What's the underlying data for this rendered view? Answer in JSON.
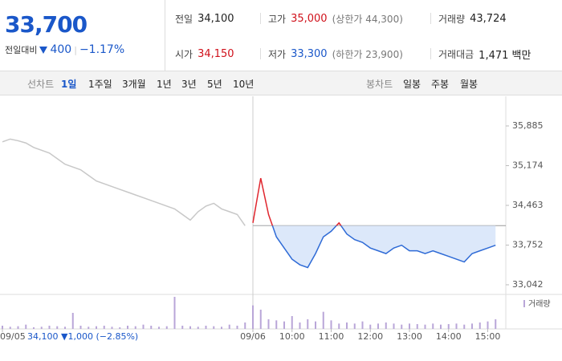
{
  "header": {
    "price": "33,700",
    "change_label": "전일대비",
    "change": "400",
    "change_pct": "−1.17%"
  },
  "stats": [
    {
      "label": "전일",
      "value": "34,100"
    },
    {
      "label": "고가",
      "value": "35,000",
      "note": "(상한가 44,300)"
    },
    {
      "label": "거래량",
      "value": "43,724"
    },
    {
      "label": "시가",
      "value": "34,150"
    },
    {
      "label": "저가",
      "value": "33,300",
      "note": "(하한가 23,900)"
    },
    {
      "label": "거래대금",
      "value": "1,471 백만"
    }
  ],
  "tabs": {
    "line_label": "선차트",
    "line": [
      "1일",
      "1주일",
      "3개월",
      "1년",
      "3년",
      "5년",
      "10년"
    ],
    "candle_label": "봉차트",
    "candle": [
      "일봉",
      "주봉",
      "월봉"
    ]
  },
  "footer_note": {
    "price": "34,100",
    "change": "▼1,000",
    "pct": "(−2.85%)"
  },
  "chart_data": {
    "type": "line",
    "volume_legend": "거래량",
    "categories": [
      "09/05",
      null,
      null,
      null,
      null,
      null,
      null,
      null,
      null,
      null,
      null,
      null,
      null,
      null,
      null,
      null,
      null,
      null,
      null,
      null,
      null,
      null,
      null,
      null,
      null,
      null,
      null,
      null,
      null,
      null,
      null,
      null,
      "09/06",
      null,
      null,
      null,
      null,
      "10:00",
      null,
      null,
      null,
      null,
      "11:00",
      null,
      null,
      null,
      null,
      "12:00",
      null,
      null,
      null,
      null,
      "13:00",
      null,
      null,
      null,
      null,
      "14:00",
      null,
      null,
      null,
      null,
      "15:00",
      null
    ],
    "reference": 34100,
    "series": [
      {
        "name": "09/05",
        "color": "#c8c8c8",
        "values": [
          35600,
          35650,
          35620,
          35580,
          35500,
          35450,
          35400,
          35300,
          35200,
          35150,
          35100,
          35000,
          34900,
          34850,
          34800,
          34750,
          34700,
          34650,
          34600,
          34550,
          34500,
          34450,
          34400,
          34300,
          34200,
          34350,
          34450,
          34500,
          34400,
          34350,
          34300,
          34100,
          null,
          null,
          null,
          null,
          null,
          null,
          null,
          null,
          null,
          null,
          null,
          null,
          null,
          null,
          null,
          null,
          null,
          null,
          null,
          null,
          null,
          null,
          null,
          null,
          null,
          null,
          null,
          null,
          null,
          null,
          null,
          null
        ]
      },
      {
        "name": "09/06",
        "color": "#2f6bd6",
        "up_color": "#e0262e",
        "values": [
          null,
          null,
          null,
          null,
          null,
          null,
          null,
          null,
          null,
          null,
          null,
          null,
          null,
          null,
          null,
          null,
          null,
          null,
          null,
          null,
          null,
          null,
          null,
          null,
          null,
          null,
          null,
          null,
          null,
          null,
          null,
          null,
          34150,
          34950,
          34300,
          33900,
          33700,
          33500,
          33400,
          33350,
          33600,
          33900,
          34000,
          34150,
          33950,
          33850,
          33800,
          33700,
          33650,
          33600,
          33700,
          33750,
          33650,
          33650,
          33600,
          33650,
          33600,
          33550,
          33500,
          33450,
          33600,
          33650,
          33700,
          33750
        ]
      }
    ],
    "volume": {
      "color": "#b9a6d8",
      "values": [
        300,
        200,
        250,
        400,
        150,
        200,
        300,
        250,
        200,
        1500,
        300,
        200,
        250,
        300,
        200,
        150,
        300,
        250,
        400,
        300,
        200,
        250,
        3000,
        300,
        250,
        200,
        300,
        250,
        200,
        400,
        300,
        600,
        2200,
        1800,
        900,
        800,
        700,
        1200,
        600,
        900,
        700,
        1600,
        800,
        500,
        600,
        500,
        700,
        400,
        500,
        600,
        500,
        400,
        500,
        450,
        400,
        500,
        400,
        450,
        500,
        400,
        500,
        600,
        700,
        900
      ]
    },
    "ylim": [
      32898,
      36416
    ],
    "yticks": [
      {
        "value": 35885,
        "label": "35,885"
      },
      {
        "value": 35174,
        "label": "35,174"
      },
      {
        "value": 34463,
        "label": "34,463"
      },
      {
        "value": 33752,
        "label": "33,752"
      },
      {
        "value": 33042,
        "label": "33,042"
      }
    ],
    "vlim": [
      0,
      3000
    ]
  }
}
